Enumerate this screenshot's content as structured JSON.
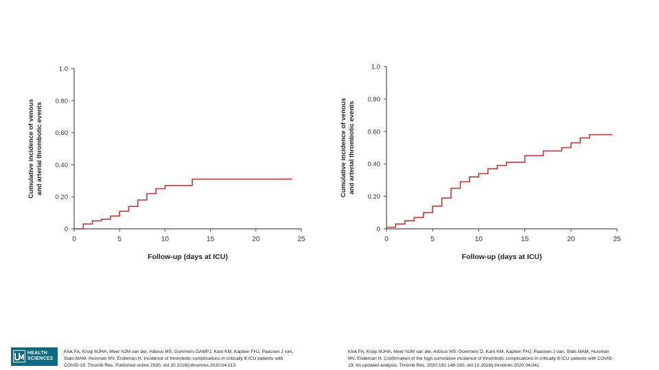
{
  "colors": {
    "line": "#d0312d",
    "axis": "#4d4d4d",
    "logo_bg": "#0c6a86"
  },
  "logo": {
    "icon": "unm-logo-icon",
    "line1": "HEALTH",
    "line2": "SCIENCES"
  },
  "citations": {
    "left": "Klok FA, Kruip MJHA, Meer NJM van der, Arbous MS, Gommers DAMPJ, Kant KM, Kaptein FHJ, Paassen J van,\nStals MAM, Huisman MV, Endeman H. Incidence of thrombotic complications in critically ill ICU patients with\nCOVID-19. Thromb Res. Published online 2020. doi:10.1016/j.thromres.2020.04.013",
    "right": "Klok FA, Kruip MJHA, Meer NJM van der, Arbous MS, Gommers D, Kant KM, Kaptein FHJ, Paassen J van, Stals MAM, Huisman\nMV, Endeman H. Confirmation of the high cumulative incidence of thrombotic complications in critically ill ICU patients with COVID-\n19: An updated analysis. Thromb Res. 2020;191:148-150. doi:10.1016/j.thromres.2020.04.041"
  },
  "chart_data": [
    {
      "type": "line",
      "step": true,
      "title": "",
      "xlabel": "Follow-up (days at ICU)",
      "ylabel": [
        "Cumulative incidence of venous",
        "and arterial thrombotic events"
      ],
      "xlim": [
        0,
        25
      ],
      "ylim": [
        0,
        1.0
      ],
      "xticks": [
        0,
        5,
        10,
        15,
        20,
        25
      ],
      "yticks": [
        0,
        0.2,
        0.4,
        0.6,
        0.8,
        1.0
      ],
      "ytick_labels": [
        "0",
        "0.20",
        "0.40",
        "0.60",
        "0.80",
        "1.0"
      ],
      "grid": false,
      "series": [
        {
          "name": "Cumulative incidence",
          "x": [
            0,
            1,
            2,
            3,
            4,
            5,
            6,
            7,
            8,
            9,
            10,
            13,
            24
          ],
          "y": [
            0,
            0.03,
            0.05,
            0.06,
            0.08,
            0.11,
            0.14,
            0.18,
            0.22,
            0.25,
            0.27,
            0.31,
            0.31
          ]
        }
      ]
    },
    {
      "type": "line",
      "step": true,
      "title": "",
      "xlabel": "Follow-up (days at ICU)",
      "ylabel": [
        "Cumulative incidence of venous",
        "and arterial thrombotic events"
      ],
      "xlim": [
        0,
        25
      ],
      "ylim": [
        0,
        1.0
      ],
      "xticks": [
        0,
        5,
        10,
        15,
        20,
        25
      ],
      "yticks": [
        0,
        0.2,
        0.4,
        0.6,
        0.8,
        1.0
      ],
      "ytick_labels": [
        "0",
        "0.20",
        "0.40",
        "0.60",
        "0.80",
        "1.0"
      ],
      "grid": false,
      "series": [
        {
          "name": "Cumulative incidence",
          "x": [
            0,
            1,
            2,
            3,
            4,
            5,
            6,
            7,
            8,
            9,
            10,
            11,
            12,
            13,
            15,
            17,
            19,
            20,
            21,
            22,
            24.5
          ],
          "y": [
            0.01,
            0.03,
            0.05,
            0.07,
            0.1,
            0.14,
            0.19,
            0.25,
            0.29,
            0.32,
            0.34,
            0.37,
            0.39,
            0.41,
            0.45,
            0.48,
            0.5,
            0.53,
            0.56,
            0.58,
            0.58
          ]
        }
      ]
    }
  ]
}
